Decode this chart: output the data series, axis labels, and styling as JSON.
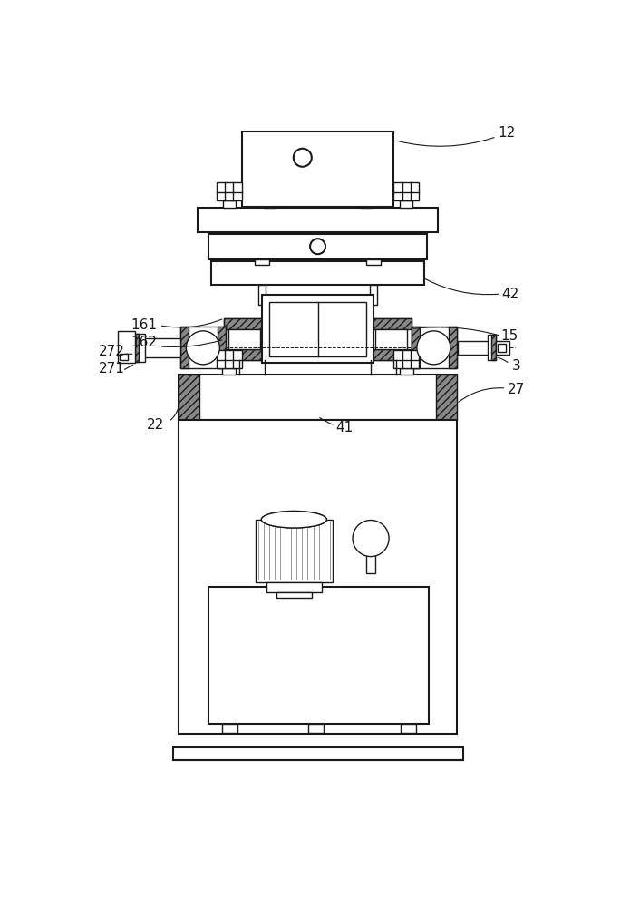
{
  "line_color": "#1a1a1a",
  "bg_color": "white",
  "lw": 1.0,
  "lw2": 1.5,
  "font_size": 11,
  "label_color": "#1a1a1a"
}
